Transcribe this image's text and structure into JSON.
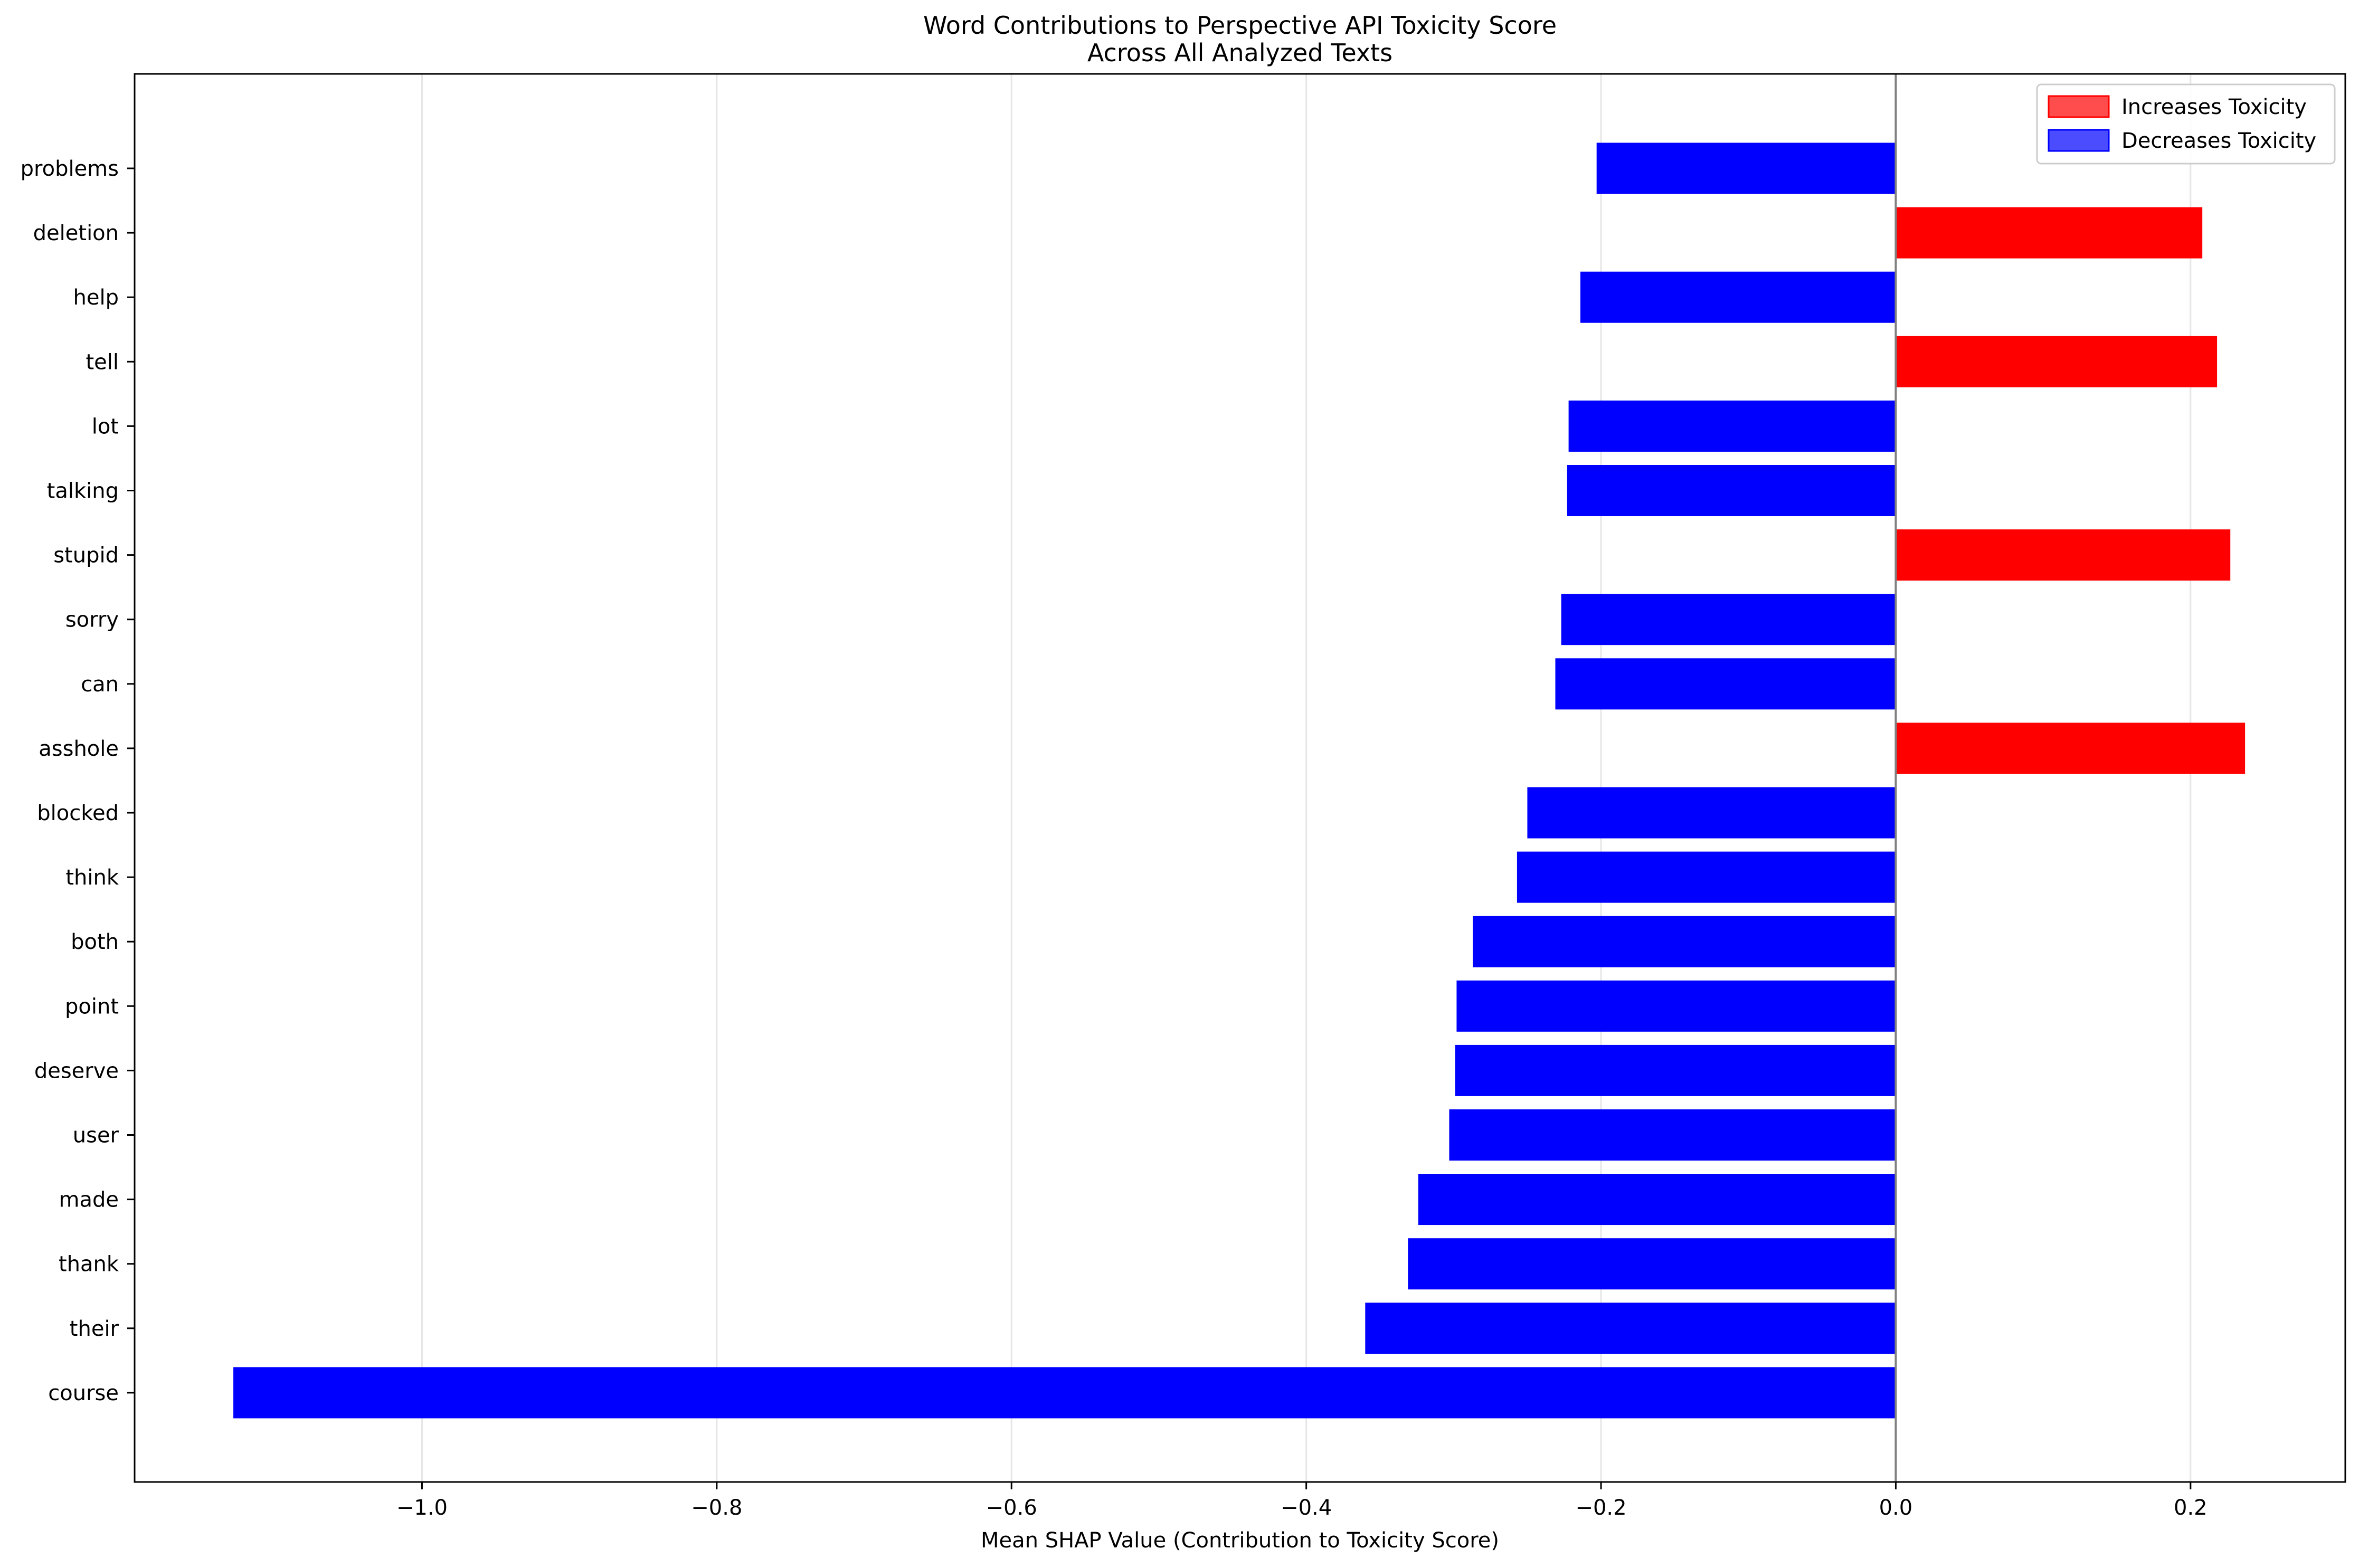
{
  "chart_data": {
    "type": "bar",
    "orientation": "horizontal",
    "title": "Word Contributions to Perspective API Toxicity Score\nAcross All Analyzed Texts",
    "xlabel": "Mean SHAP Value (Contribution to Toxicity Score)",
    "ylabel": "",
    "xlim": [
      -1.195,
      0.305
    ],
    "xticks": [
      -1.0,
      -0.8,
      -0.6,
      -0.4,
      -0.2,
      0.0,
      0.2
    ],
    "xtick_labels": [
      "−1.0",
      "−0.8",
      "−0.6",
      "−0.4",
      "−0.2",
      "0.0",
      "0.2"
    ],
    "grid": "x",
    "legend_position": "top-right",
    "legend": [
      {
        "label": "Increases Toxicity",
        "color": "#ff0000"
      },
      {
        "label": "Decreases Toxicity",
        "color": "#0000ff"
      }
    ],
    "categories": [
      "problems",
      "deletion",
      "help",
      "tell",
      "lot",
      "talking",
      "stupid",
      "sorry",
      "can",
      "asshole",
      "blocked",
      "think",
      "both",
      "point",
      "deserve",
      "user",
      "made",
      "thank",
      "their",
      "course"
    ],
    "values": [
      -0.203,
      0.208,
      -0.214,
      0.218,
      -0.222,
      -0.223,
      0.227,
      -0.227,
      -0.231,
      0.237,
      -0.25,
      -0.257,
      -0.287,
      -0.298,
      -0.299,
      -0.303,
      -0.324,
      -0.331,
      -0.36,
      -1.128
    ],
    "colors": {
      "positive": "#ff0000",
      "negative": "#0000ff",
      "zero_line": "#808080"
    }
  }
}
